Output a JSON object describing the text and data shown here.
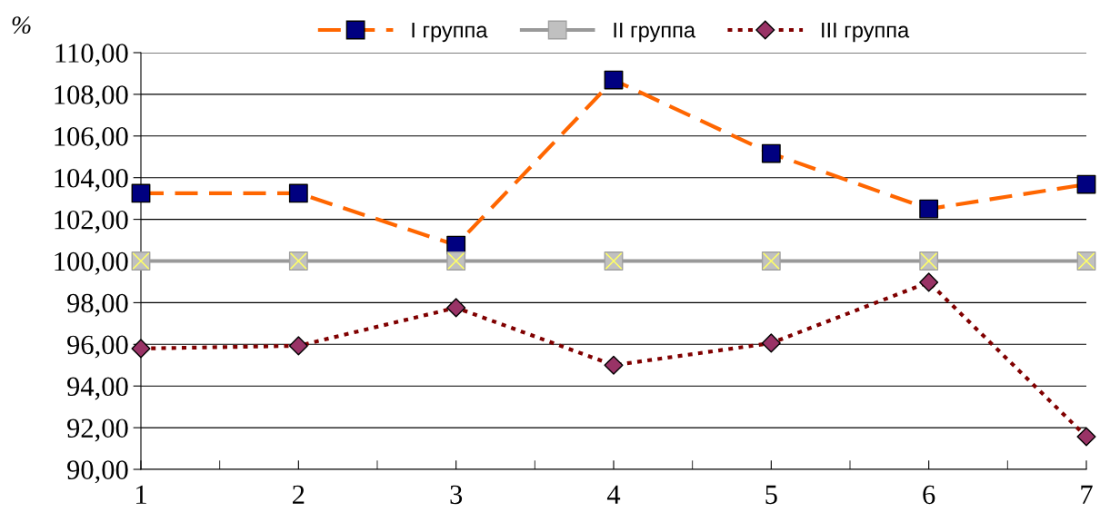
{
  "chart_data": {
    "type": "line",
    "ylabel": "%",
    "categories": [
      "1",
      "2",
      "3",
      "4",
      "5",
      "6",
      "7"
    ],
    "series": [
      {
        "name": "I группа",
        "color": "#ff6600",
        "colors": [
          "#000080",
          "#000080",
          "#000080",
          "#000080",
          "#000080",
          "#000080",
          "#000080"
        ],
        "marker": "square",
        "line_style": "dashed",
        "values": [
          103.25,
          103.25,
          100.76,
          108.69,
          105.16,
          102.5,
          103.68
        ]
      },
      {
        "name": "II группа",
        "color": "#999999",
        "colors": [
          "#c0c0c0",
          "#c0c0c0",
          "#c0c0c0",
          "#c0c0c0",
          "#c0c0c0",
          "#c0c0c0",
          "#c0c0c0"
        ],
        "marker": "square",
        "line_style": "solid",
        "values": [
          100,
          100,
          100,
          100,
          100,
          100,
          100
        ]
      },
      {
        "name": "III группа",
        "color": "#800000",
        "colors": [
          "#993366",
          "#993366",
          "#993366",
          "#993366",
          "#993366",
          "#993366",
          "#993366"
        ],
        "marker": "diamond",
        "line_style": "dotted",
        "values": [
          95.8,
          95.93,
          97.76,
          95.0,
          96.06,
          98.98,
          91.57
        ]
      }
    ],
    "ylim": [
      90,
      110
    ],
    "yticks": [
      {
        "value": 90,
        "label": "90,00"
      },
      {
        "value": 92,
        "label": "92,00"
      },
      {
        "value": 94,
        "label": "94,00"
      },
      {
        "value": 96,
        "label": "96,00"
      },
      {
        "value": 98,
        "label": "98,00"
      },
      {
        "value": 100,
        "label": "100,00"
      },
      {
        "value": 102,
        "label": "102,00"
      },
      {
        "value": 104,
        "label": "104,00"
      },
      {
        "value": 106,
        "label": "106,00"
      },
      {
        "value": 108,
        "label": "108,00"
      },
      {
        "value": 110,
        "label": "110,00"
      }
    ],
    "grid": "y",
    "legend": "top"
  }
}
